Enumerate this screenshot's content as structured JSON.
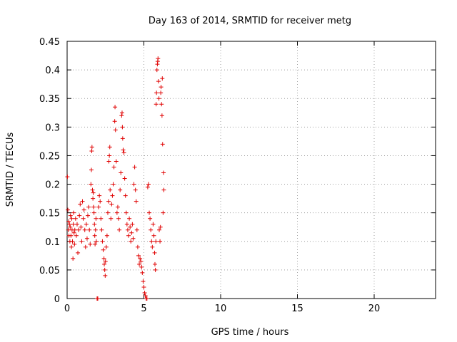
{
  "chart_data": {
    "type": "scatter",
    "title": "Day 163 of 2014, SRMTID for receiver metg",
    "xlabel": "GPS time / hours",
    "ylabel": "SRMTID / TECUs",
    "xlim": [
      0,
      24
    ],
    "ylim": [
      0,
      0.45
    ],
    "grid": true,
    "xticks": [
      0,
      5,
      10,
      15,
      20
    ],
    "xtick_labels": [
      "0",
      "5",
      "10",
      "15",
      "20"
    ],
    "yticks": [
      0,
      0.05,
      0.1,
      0.15,
      0.2,
      0.25,
      0.3,
      0.35,
      0.4,
      0.45
    ],
    "ytick_labels": [
      "0",
      "0.05",
      "0.1",
      "0.15",
      "0.2",
      "0.25",
      "0.3",
      "0.35",
      "0.4",
      "0.45"
    ],
    "marker": "+",
    "color": "#e00000",
    "series": [
      {
        "name": "SRMTID",
        "points": [
          [
            0.02,
            0.213
          ],
          [
            0.05,
            0.155
          ],
          [
            0.08,
            0.12
          ],
          [
            0.1,
            0.135
          ],
          [
            0.12,
            0.11
          ],
          [
            0.15,
            0.13
          ],
          [
            0.18,
            0.1
          ],
          [
            0.2,
            0.125
          ],
          [
            0.22,
            0.145
          ],
          [
            0.25,
            0.11
          ],
          [
            0.28,
            0.09
          ],
          [
            0.3,
            0.14
          ],
          [
            0.32,
            0.12
          ],
          [
            0.35,
            0.1
          ],
          [
            0.38,
            0.07
          ],
          [
            0.4,
            0.13
          ],
          [
            0.42,
            0.15
          ],
          [
            0.45,
            0.115
          ],
          [
            0.48,
            0.095
          ],
          [
            0.5,
            0.12
          ],
          [
            0.55,
            0.14
          ],
          [
            0.6,
            0.11
          ],
          [
            0.65,
            0.13
          ],
          [
            0.7,
            0.08
          ],
          [
            0.75,
            0.12
          ],
          [
            0.8,
            0.145
          ],
          [
            0.85,
            0.165
          ],
          [
            0.9,
            0.125
          ],
          [
            0.95,
            0.1
          ],
          [
            1.0,
            0.17
          ],
          [
            1.05,
            0.14
          ],
          [
            1.1,
            0.155
          ],
          [
            1.15,
            0.12
          ],
          [
            1.2,
            0.09
          ],
          [
            1.25,
            0.13
          ],
          [
            1.3,
            0.105
          ],
          [
            1.35,
            0.145
          ],
          [
            1.4,
            0.16
          ],
          [
            1.45,
            0.12
          ],
          [
            1.5,
            0.095
          ],
          [
            1.55,
            0.2
          ],
          [
            1.58,
            0.225
          ],
          [
            1.6,
            0.258
          ],
          [
            1.62,
            0.265
          ],
          [
            1.65,
            0.19
          ],
          [
            1.68,
            0.175
          ],
          [
            1.7,
            0.185
          ],
          [
            1.72,
            0.16
          ],
          [
            1.75,
            0.15
          ],
          [
            1.78,
            0.13
          ],
          [
            1.8,
            0.11
          ],
          [
            1.82,
            0.095
          ],
          [
            1.85,
            0.12
          ],
          [
            1.88,
            0.14
          ],
          [
            1.9,
            0.1
          ],
          [
            1.95,
            0.0
          ],
          [
            2.0,
            0.0
          ],
          [
            2.05,
            0.16
          ],
          [
            2.1,
            0.18
          ],
          [
            2.15,
            0.17
          ],
          [
            2.2,
            0.14
          ],
          [
            2.25,
            0.12
          ],
          [
            2.3,
            0.1
          ],
          [
            2.35,
            0.085
          ],
          [
            2.4,
            0.07
          ],
          [
            2.42,
            0.06
          ],
          [
            2.45,
            0.05
          ],
          [
            2.48,
            0.04
          ],
          [
            2.5,
            0.065
          ],
          [
            2.55,
            0.09
          ],
          [
            2.6,
            0.11
          ],
          [
            2.65,
            0.15
          ],
          [
            2.7,
            0.17
          ],
          [
            2.72,
            0.24
          ],
          [
            2.75,
            0.25
          ],
          [
            2.78,
            0.265
          ],
          [
            2.8,
            0.19
          ],
          [
            2.85,
            0.14
          ],
          [
            2.9,
            0.165
          ],
          [
            2.95,
            0.18
          ],
          [
            3.0,
            0.2
          ],
          [
            3.05,
            0.23
          ],
          [
            3.1,
            0.31
          ],
          [
            3.12,
            0.335
          ],
          [
            3.15,
            0.295
          ],
          [
            3.2,
            0.24
          ],
          [
            3.25,
            0.15
          ],
          [
            3.3,
            0.16
          ],
          [
            3.35,
            0.14
          ],
          [
            3.4,
            0.12
          ],
          [
            3.45,
            0.19
          ],
          [
            3.5,
            0.22
          ],
          [
            3.55,
            0.32
          ],
          [
            3.58,
            0.325
          ],
          [
            3.6,
            0.3
          ],
          [
            3.62,
            0.28
          ],
          [
            3.65,
            0.26
          ],
          [
            3.7,
            0.255
          ],
          [
            3.75,
            0.21
          ],
          [
            3.8,
            0.18
          ],
          [
            3.85,
            0.15
          ],
          [
            3.9,
            0.13
          ],
          [
            3.95,
            0.12
          ],
          [
            4.0,
            0.11
          ],
          [
            4.05,
            0.14
          ],
          [
            4.1,
            0.125
          ],
          [
            4.15,
            0.1
          ],
          [
            4.2,
            0.115
          ],
          [
            4.25,
            0.13
          ],
          [
            4.3,
            0.105
          ],
          [
            4.35,
            0.2
          ],
          [
            4.4,
            0.23
          ],
          [
            4.45,
            0.19
          ],
          [
            4.5,
            0.17
          ],
          [
            4.55,
            0.12
          ],
          [
            4.6,
            0.09
          ],
          [
            4.65,
            0.075
          ],
          [
            4.7,
            0.06
          ],
          [
            4.75,
            0.07
          ],
          [
            4.8,
            0.065
          ],
          [
            4.85,
            0.055
          ],
          [
            4.9,
            0.045
          ],
          [
            4.95,
            0.03
          ],
          [
            5.0,
            0.02
          ],
          [
            5.05,
            0.01
          ],
          [
            5.1,
            0.005
          ],
          [
            5.15,
            0.0
          ],
          [
            5.2,
            0.0
          ],
          [
            5.25,
            0.195
          ],
          [
            5.3,
            0.2
          ],
          [
            5.35,
            0.15
          ],
          [
            5.4,
            0.14
          ],
          [
            5.45,
            0.12
          ],
          [
            5.5,
            0.1
          ],
          [
            5.55,
            0.09
          ],
          [
            5.6,
            0.13
          ],
          [
            5.65,
            0.11
          ],
          [
            5.7,
            0.08
          ],
          [
            5.72,
            0.06
          ],
          [
            5.75,
            0.05
          ],
          [
            5.78,
            0.1
          ],
          [
            5.8,
            0.34
          ],
          [
            5.82,
            0.36
          ],
          [
            5.85,
            0.4
          ],
          [
            5.88,
            0.41
          ],
          [
            5.9,
            0.415
          ],
          [
            5.92,
            0.42
          ],
          [
            5.95,
            0.38
          ],
          [
            5.98,
            0.35
          ],
          [
            6.0,
            0.12
          ],
          [
            6.05,
            0.1
          ],
          [
            6.08,
            0.125
          ],
          [
            6.1,
            0.36
          ],
          [
            6.12,
            0.37
          ],
          [
            6.15,
            0.34
          ],
          [
            6.18,
            0.32
          ],
          [
            6.2,
            0.385
          ],
          [
            6.22,
            0.27
          ],
          [
            6.25,
            0.15
          ],
          [
            6.28,
            0.22
          ],
          [
            6.3,
            0.19
          ]
        ]
      }
    ]
  }
}
